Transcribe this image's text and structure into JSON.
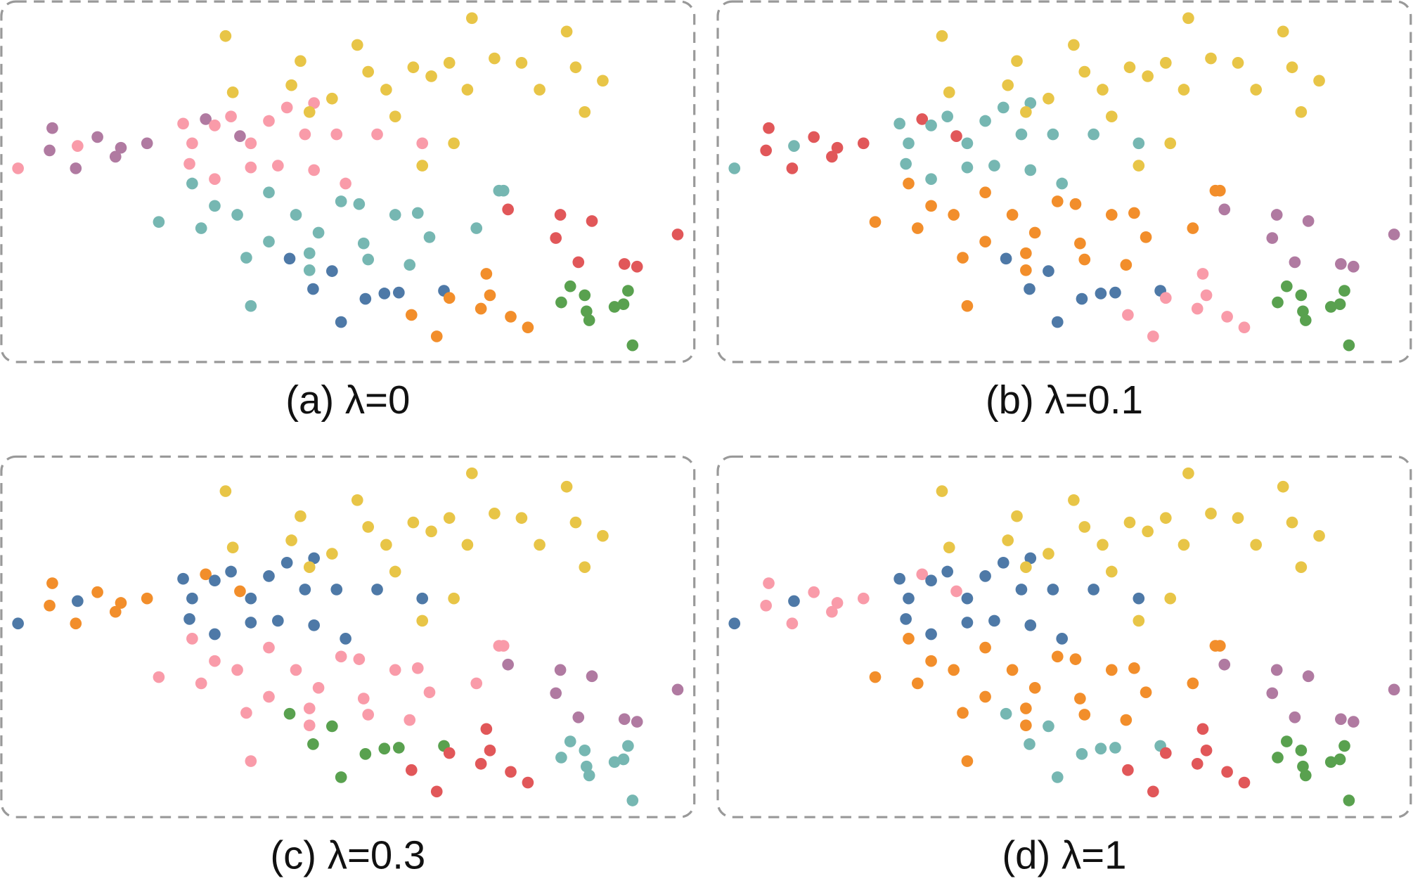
{
  "chart_data": [
    {
      "type": "scatter",
      "title": "(a) λ=0",
      "series": [
        {
          "color": "#b07aa1",
          "x": [
            60,
            57,
            86,
            110,
            130,
            136,
            165,
            230,
            268
          ],
          "y": [
            257,
            232,
            212,
            247,
            225,
            235,
            240,
            267,
            248
          ]
        },
        {
          "color": "#f99ba9",
          "x": [
            22,
            88,
            205,
            215,
            240,
            258,
            212,
            280,
            300,
            320,
            350,
            340,
            375,
            310,
            280,
            240,
            385,
            420,
            470,
            350
          ],
          "y": [
            212,
            237,
            262,
            240,
            260,
            270,
            217,
            240,
            265,
            280,
            285,
            250,
            250,
            215,
            213,
            200,
            195,
            250,
            240,
            210
          ]
        },
        {
          "color": "#76b7b2",
          "x": [
            178,
            215,
            240,
            225,
            265,
            300,
            330,
            355,
            300,
            275,
            345,
            405,
            380,
            400,
            440,
            465,
            478,
            410,
            456,
            280,
            345,
            560,
            530,
            555
          ],
          "y": [
            152,
            195,
            170,
            145,
            160,
            185,
            160,
            140,
            130,
            112,
            117,
            128,
            175,
            172,
            160,
            162,
            135,
            110,
            104,
            58,
            98,
            187,
            145,
            187
          ]
        },
        {
          "color": "#4e79a7",
          "x": [
            323,
            370,
            349,
            407,
            428,
            444,
            380,
            494
          ],
          "y": [
            111,
            97,
            77,
            66,
            72,
            73,
            40,
            75
          ]
        },
        {
          "color": "#e8c547",
          "x": [
            252,
            260,
            335,
            325,
            345,
            398,
            410,
            430,
            460,
            480,
            500,
            525,
            520,
            550,
            580,
            630,
            600,
            640,
            670,
            650,
            470,
            505,
            440,
            370
          ],
          "y": [
            360,
            297,
            332,
            305,
            275,
            350,
            320,
            300,
            325,
            315,
            330,
            380,
            300,
            335,
            330,
            365,
            300,
            325,
            310,
            275,
            215,
            240,
            270,
            290
          ]
        },
        {
          "color": "#f28e2b",
          "x": [
            541,
            545,
            458,
            500,
            535,
            568,
            587,
            486
          ],
          "y": [
            94,
            70,
            48,
            67,
            55,
            46,
            34,
            24
          ]
        },
        {
          "color": "#e15759",
          "x": [
            565,
            623,
            658,
            618,
            753,
            643,
            694,
            708
          ],
          "y": [
            166,
            160,
            153,
            134,
            138,
            107,
            105,
            102
          ]
        },
        {
          "color": "#59a14f",
          "x": [
            634,
            650,
            624,
            698,
            683,
            693,
            652,
            655,
            703
          ],
          "y": [
            80,
            70,
            62,
            75,
            57,
            60,
            52,
            42,
            14
          ]
        }
      ]
    },
    {
      "type": "scatter",
      "title": "(b) λ=0.1",
      "series": [
        {
          "color": "#e15759",
          "x": [
            60,
            57,
            86,
            110,
            130,
            136,
            165,
            230,
            268
          ],
          "y": [
            257,
            232,
            212,
            247,
            225,
            235,
            240,
            267,
            248
          ]
        },
        {
          "color": "#76b7b2",
          "x": [
            22,
            88,
            205,
            215,
            240,
            258,
            212,
            280,
            300,
            320,
            350,
            340,
            375,
            310,
            280,
            240,
            385,
            420,
            470,
            350
          ],
          "y": [
            212,
            237,
            262,
            240,
            260,
            270,
            217,
            240,
            265,
            280,
            285,
            250,
            250,
            215,
            213,
            200,
            195,
            250,
            240,
            210
          ]
        },
        {
          "color": "#f28e2b",
          "x": [
            178,
            215,
            240,
            225,
            265,
            300,
            330,
            355,
            300,
            275,
            345,
            405,
            380,
            400,
            440,
            465,
            478,
            410,
            456,
            280,
            345,
            560,
            530,
            555
          ],
          "y": [
            152,
            195,
            170,
            145,
            160,
            185,
            160,
            140,
            130,
            112,
            117,
            128,
            175,
            172,
            160,
            162,
            135,
            110,
            104,
            58,
            98,
            187,
            145,
            187
          ]
        },
        {
          "color": "#4e79a7",
          "x": [
            323,
            370,
            349,
            407,
            428,
            444,
            380,
            494
          ],
          "y": [
            111,
            97,
            77,
            66,
            72,
            73,
            40,
            75
          ]
        },
        {
          "color": "#e8c547",
          "x": [
            252,
            260,
            335,
            325,
            345,
            398,
            410,
            430,
            460,
            480,
            500,
            525,
            520,
            550,
            580,
            630,
            600,
            640,
            670,
            650,
            470,
            505,
            440,
            370
          ],
          "y": [
            360,
            297,
            332,
            305,
            275,
            350,
            320,
            300,
            325,
            315,
            330,
            380,
            300,
            335,
            330,
            365,
            300,
            325,
            310,
            275,
            215,
            240,
            270,
            290
          ]
        },
        {
          "color": "#f99ba9",
          "x": [
            541,
            545,
            458,
            500,
            535,
            568,
            587,
            486
          ],
          "y": [
            94,
            70,
            48,
            67,
            55,
            46,
            34,
            24
          ]
        },
        {
          "color": "#b07aa1",
          "x": [
            565,
            623,
            658,
            618,
            753,
            643,
            694,
            708
          ],
          "y": [
            166,
            160,
            153,
            134,
            138,
            107,
            105,
            102
          ]
        },
        {
          "color": "#59a14f",
          "x": [
            634,
            650,
            624,
            698,
            683,
            693,
            652,
            655,
            703
          ],
          "y": [
            80,
            70,
            62,
            75,
            57,
            60,
            52,
            42,
            14
          ]
        }
      ]
    },
    {
      "type": "scatter",
      "title": "(c) λ=0.3",
      "series": [
        {
          "color": "#f28e2b",
          "x": [
            60,
            57,
            86,
            110,
            130,
            136,
            165,
            230,
            268
          ],
          "y": [
            257,
            232,
            212,
            247,
            225,
            235,
            240,
            267,
            248
          ]
        },
        {
          "color": "#4e79a7",
          "x": [
            22,
            88,
            205,
            215,
            240,
            258,
            212,
            280,
            300,
            320,
            350,
            340,
            375,
            310,
            280,
            240,
            385,
            420,
            470,
            350
          ],
          "y": [
            212,
            237,
            262,
            240,
            260,
            270,
            217,
            240,
            265,
            280,
            285,
            250,
            250,
            215,
            213,
            200,
            195,
            250,
            240,
            210
          ]
        },
        {
          "color": "#f99ba9",
          "x": [
            178,
            215,
            240,
            225,
            265,
            300,
            330,
            355,
            300,
            275,
            345,
            405,
            380,
            400,
            440,
            465,
            478,
            410,
            456,
            280,
            345,
            560,
            530,
            555
          ],
          "y": [
            152,
            195,
            170,
            145,
            160,
            185,
            160,
            140,
            130,
            112,
            117,
            128,
            175,
            172,
            160,
            162,
            135,
            110,
            104,
            58,
            98,
            187,
            145,
            187
          ]
        },
        {
          "color": "#59a14f",
          "x": [
            323,
            370,
            349,
            407,
            428,
            444,
            380,
            494
          ],
          "y": [
            111,
            97,
            77,
            66,
            72,
            73,
            40,
            75
          ]
        },
        {
          "color": "#e8c547",
          "x": [
            252,
            260,
            335,
            325,
            345,
            398,
            410,
            430,
            460,
            480,
            500,
            525,
            520,
            550,
            580,
            630,
            600,
            640,
            670,
            650,
            470,
            505,
            440,
            370
          ],
          "y": [
            360,
            297,
            332,
            305,
            275,
            350,
            320,
            300,
            325,
            315,
            330,
            380,
            300,
            335,
            330,
            365,
            300,
            325,
            310,
            275,
            215,
            240,
            270,
            290
          ]
        },
        {
          "color": "#e15759",
          "x": [
            541,
            545,
            458,
            500,
            535,
            568,
            587,
            486
          ],
          "y": [
            94,
            70,
            48,
            67,
            55,
            46,
            34,
            24
          ]
        },
        {
          "color": "#b07aa1",
          "x": [
            565,
            623,
            658,
            618,
            753,
            643,
            694,
            708
          ],
          "y": [
            166,
            160,
            153,
            134,
            138,
            107,
            105,
            102
          ]
        },
        {
          "color": "#76b7b2",
          "x": [
            634,
            650,
            624,
            698,
            683,
            693,
            652,
            655,
            703
          ],
          "y": [
            80,
            70,
            62,
            75,
            57,
            60,
            52,
            42,
            14
          ]
        }
      ]
    },
    {
      "type": "scatter",
      "title": "(d) λ=1",
      "series": [
        {
          "color": "#f99ba9",
          "x": [
            60,
            57,
            86,
            110,
            130,
            136,
            165,
            230,
            268
          ],
          "y": [
            257,
            232,
            212,
            247,
            225,
            235,
            240,
            267,
            248
          ]
        },
        {
          "color": "#4e79a7",
          "x": [
            22,
            88,
            205,
            215,
            240,
            258,
            212,
            280,
            300,
            320,
            350,
            340,
            375,
            310,
            280,
            240,
            385,
            420,
            470,
            350
          ],
          "y": [
            212,
            237,
            262,
            240,
            260,
            270,
            217,
            240,
            265,
            280,
            285,
            250,
            250,
            215,
            213,
            200,
            195,
            250,
            240,
            210
          ]
        },
        {
          "color": "#f28e2b",
          "x": [
            178,
            215,
            240,
            225,
            265,
            300,
            330,
            355,
            300,
            275,
            345,
            405,
            380,
            400,
            440,
            465,
            478,
            410,
            456,
            280,
            345,
            560,
            530,
            555
          ],
          "y": [
            152,
            195,
            170,
            145,
            160,
            185,
            160,
            140,
            130,
            112,
            117,
            128,
            175,
            172,
            160,
            162,
            135,
            110,
            104,
            58,
            98,
            187,
            145,
            187
          ]
        },
        {
          "color": "#76b7b2",
          "x": [
            323,
            370,
            349,
            407,
            428,
            444,
            380,
            494
          ],
          "y": [
            111,
            97,
            77,
            66,
            72,
            73,
            40,
            75
          ]
        },
        {
          "color": "#e8c547",
          "x": [
            252,
            260,
            335,
            325,
            345,
            398,
            410,
            430,
            460,
            480,
            500,
            525,
            520,
            550,
            580,
            630,
            600,
            640,
            670,
            650,
            470,
            505,
            440,
            370
          ],
          "y": [
            360,
            297,
            332,
            305,
            275,
            350,
            320,
            300,
            325,
            315,
            330,
            380,
            300,
            335,
            330,
            365,
            300,
            325,
            310,
            275,
            215,
            240,
            270,
            290
          ]
        },
        {
          "color": "#e15759",
          "x": [
            541,
            545,
            458,
            500,
            535,
            568,
            587,
            486
          ],
          "y": [
            94,
            70,
            48,
            67,
            55,
            46,
            34,
            24
          ]
        },
        {
          "color": "#b07aa1",
          "x": [
            565,
            623,
            658,
            618,
            753,
            643,
            694,
            708
          ],
          "y": [
            166,
            160,
            153,
            134,
            138,
            107,
            105,
            102
          ]
        },
        {
          "color": "#59a14f",
          "x": [
            634,
            650,
            624,
            698,
            683,
            693,
            652,
            655,
            703
          ],
          "y": [
            80,
            70,
            62,
            75,
            57,
            60,
            52,
            42,
            14
          ]
        }
      ]
    }
  ]
}
